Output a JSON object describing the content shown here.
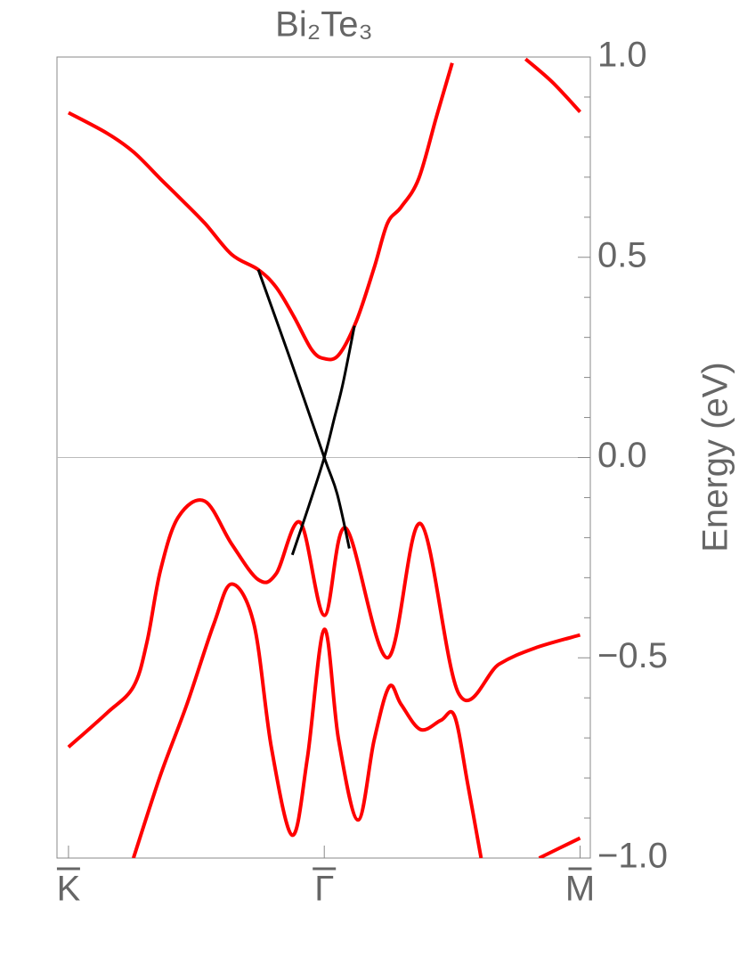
{
  "chart_data": {
    "type": "line",
    "title": "Bi₂Te₃",
    "y_label": "Energy (eV)",
    "xlim": [
      -0.045,
      2.04
    ],
    "ylim": [
      -1.0,
      1.0
    ],
    "xticks": [
      {
        "value": 0,
        "label": "K"
      },
      {
        "value": 1,
        "label": "Γ"
      },
      {
        "value": 2,
        "label": "M"
      }
    ],
    "yticks": [
      {
        "value": -1.0,
        "label": "−1.0"
      },
      {
        "value": -0.5,
        "label": "−0.5"
      },
      {
        "value": 0.0,
        "label": "0.0"
      },
      {
        "value": 0.5,
        "label": "0.5"
      },
      {
        "value": 1.0,
        "label": "1.0"
      }
    ],
    "minor_yticks": [
      -0.9,
      -0.8,
      -0.7,
      -0.6,
      -0.4,
      -0.3,
      -0.2,
      -0.1,
      0.1,
      0.2,
      0.3,
      0.4,
      0.6,
      0.7,
      0.8,
      0.9
    ],
    "zero_line": true,
    "series": [
      {
        "color": "#ff0000",
        "x": [
          0,
          0.15,
          0.254,
          0.359,
          0.429,
          0.533,
          0.638,
          0.742,
          0.812,
          0.882,
          0.951,
          1.0,
          1.056,
          1.125,
          1.195,
          1.247,
          1.3,
          1.369,
          1.439,
          1.5,
          1.65,
          1.787,
          1.892,
          2.0
        ],
        "values": [
          0.861,
          0.81,
          0.763,
          0.696,
          0.652,
          0.585,
          0.507,
          0.469,
          0.425,
          0.351,
          0.269,
          0.247,
          0.256,
          0.34,
          0.474,
          0.585,
          0.625,
          0.696,
          0.852,
          0.985,
          null,
          0.995,
          0.937,
          0.863
        ]
      },
      {
        "color": "#ff0000",
        "x": [
          0,
          0.15,
          0.254,
          0.307,
          0.359,
          0.429,
          0.533,
          0.638,
          0.742,
          0.812,
          0.906,
          1.0,
          1.084,
          1.247,
          1.376,
          1.526,
          1.683,
          1.822,
          2.0
        ],
        "values": [
          -0.723,
          -0.638,
          -0.572,
          -0.46,
          -0.283,
          -0.149,
          -0.109,
          -0.216,
          -0.305,
          -0.29,
          -0.162,
          -0.394,
          -0.176,
          -0.5,
          -0.165,
          -0.59,
          -0.516,
          -0.476,
          -0.443
        ]
      },
      {
        "color": "#ff0000",
        "x": [
          0.254,
          0.359,
          0.463,
          0.568,
          0.638,
          0.725,
          0.794,
          0.875,
          0.934,
          1.0,
          1.056,
          1.132,
          1.195,
          1.254,
          1.3,
          1.376,
          1.456,
          1.509,
          1.561,
          1.613,
          1.7,
          1.84,
          2.0
        ],
        "values": [
          -1.0,
          -0.794,
          -0.616,
          -0.416,
          -0.316,
          -0.416,
          -0.727,
          -0.943,
          -0.75,
          -0.429,
          -0.705,
          -0.905,
          -0.705,
          -0.572,
          -0.616,
          -0.679,
          -0.656,
          -0.645,
          -0.816,
          -1.0,
          null,
          -1.0,
          -0.95
        ]
      },
      {
        "color": "#000000",
        "x": [
          0.742,
          0.87,
          1.0,
          1.05,
          1.098
        ],
        "values": [
          0.469,
          0.24,
          0,
          -0.09,
          -0.227
        ]
      },
      {
        "color": "#000000",
        "x": [
          0.875,
          0.94,
          1.0,
          1.04,
          1.073,
          1.118
        ],
        "values": [
          -0.243,
          -0.12,
          0,
          0.1,
          0.185,
          0.329
        ]
      }
    ]
  }
}
